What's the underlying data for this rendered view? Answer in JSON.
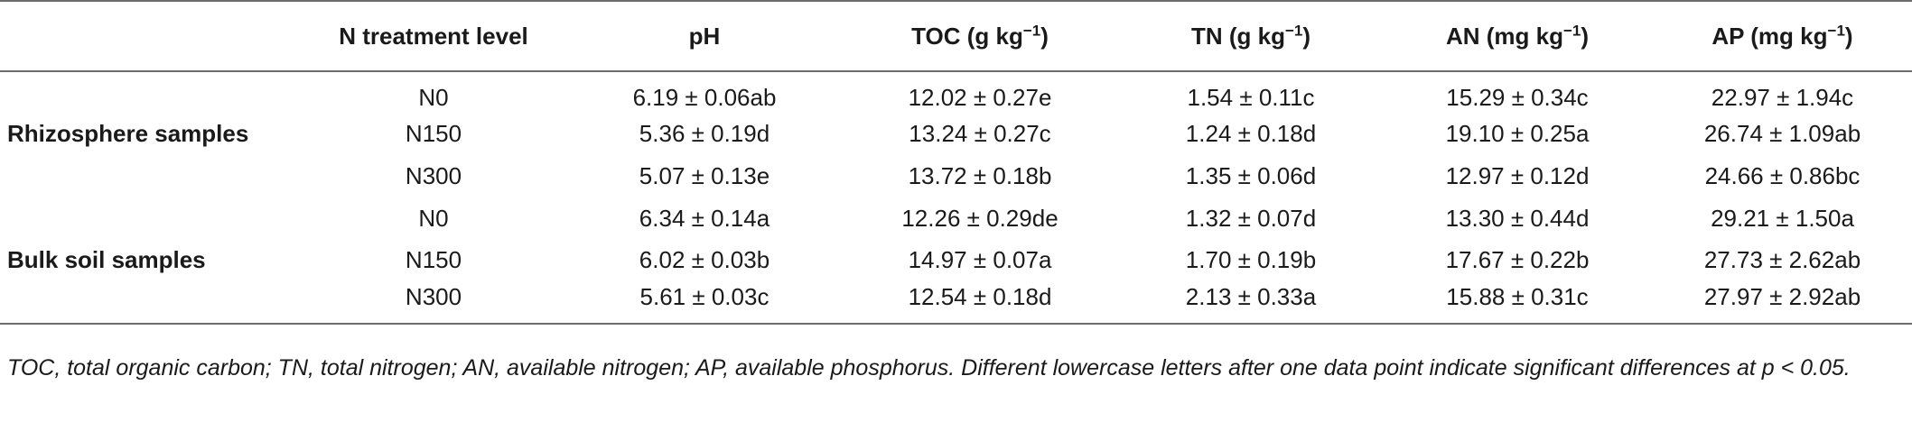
{
  "table": {
    "headers": [
      {
        "key": "group",
        "text": ""
      },
      {
        "key": "level",
        "text": "N treatment level"
      },
      {
        "key": "ph",
        "text": "pH"
      },
      {
        "key": "toc",
        "text": "TOC (g kg",
        "sup": "−1",
        "close": ")"
      },
      {
        "key": "tn",
        "text": "TN (g kg",
        "sup": "−1",
        "close": ")"
      },
      {
        "key": "an",
        "text": "AN (mg kg",
        "sup": "−1",
        "close": ")"
      },
      {
        "key": "ap",
        "text": "AP (mg kg",
        "sup": "−1",
        "close": ")"
      }
    ],
    "groups": [
      {
        "label": "Rhizosphere samples",
        "rows": [
          [
            "N0",
            "6.19 ± 0.06ab",
            "12.02 ± 0.27e",
            "1.54 ± 0.11c",
            "15.29 ± 0.34c",
            "22.97 ± 1.94c"
          ],
          [
            "N150",
            "5.36 ± 0.19d",
            "13.24 ± 0.27c",
            "1.24 ± 0.18d",
            "19.10 ± 0.25a",
            "26.74 ± 1.09ab"
          ],
          [
            "N300",
            "5.07 ± 0.13e",
            "13.72 ± 0.18b",
            "1.35 ± 0.06d",
            "12.97 ± 0.12d",
            "24.66 ± 0.86bc"
          ]
        ]
      },
      {
        "label": "Bulk soil samples",
        "rows": [
          [
            "N0",
            "6.34 ± 0.14a",
            "12.26 ± 0.29de",
            "1.32 ± 0.07d",
            "13.30 ± 0.44d",
            "29.21 ± 1.50a"
          ],
          [
            "N150",
            "6.02 ± 0.03b",
            "14.97 ± 0.07a",
            "1.70 ± 0.19b",
            "17.67 ± 0.22b",
            "27.73 ± 2.62ab"
          ],
          [
            "N300",
            "5.61 ± 0.03c",
            "12.54 ± 0.18d",
            "2.13 ± 0.33a",
            "15.88 ± 0.31c",
            "27.97 ± 2.92ab"
          ]
        ]
      }
    ]
  },
  "footnote": "TOC, total organic carbon; TN, total nitrogen; AN, available nitrogen; AP, available phosphorus. Different lowercase letters after one data point indicate significant differences at p < 0.05."
}
